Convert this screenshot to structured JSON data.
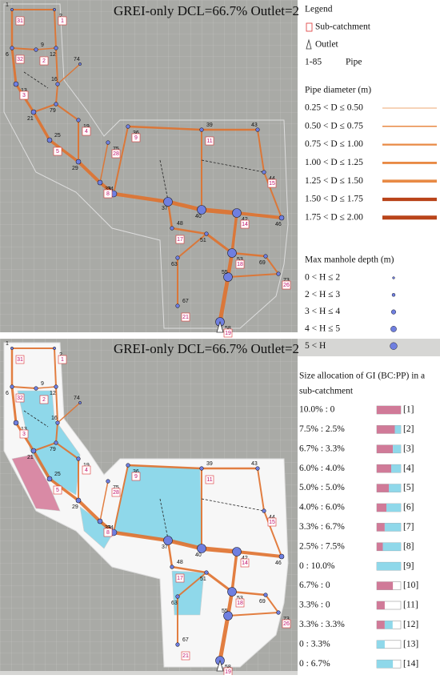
{
  "top": {
    "title": "GREI-only DCL=66.7% Outlet=2",
    "legend_title": "Legend",
    "subcatchment": "Sub-catchment",
    "outlet": "Outlet",
    "pipe_range": "1-85",
    "pipe": "Pipe",
    "diameter_title": "Pipe diameter (m)",
    "diameters": [
      "0.25 < D ≤ 0.50",
      "0.50 < D ≤ 0.75",
      "0.75 < D ≤ 1.00",
      "1.00 < D ≤ 1.25",
      "1.25 < D ≤ 1.50",
      "1.50 < D ≤ 1.75",
      "1.75 < D ≤ 2.00"
    ],
    "depth_title": "Max manhole depth (m)",
    "depths": [
      "0 < H ≤ 2",
      "2 < H ≤ 3",
      "3 < H ≤ 4",
      "4 < H ≤ 5",
      "5 < H"
    ]
  },
  "bottom": {
    "title": "GREI-only DCL=66.7% Outlet=2",
    "allocation_title_1": "Size allocation of GI (BC:PP) in a",
    "allocation_title_2": "sub-catchment",
    "allocations": [
      {
        "ratio": "10.0% : 0",
        "code": "[1]"
      },
      {
        "ratio": "7.5% : 2.5%",
        "code": "[2]"
      },
      {
        "ratio": "6.7% : 3.3%",
        "code": "[3]"
      },
      {
        "ratio": "6.0% : 4.0%",
        "code": "[4]"
      },
      {
        "ratio": "5.0% : 5.0%",
        "code": "[5]"
      },
      {
        "ratio": "4.0% : 6.0%",
        "code": "[6]"
      },
      {
        "ratio": "3.3% : 6.7%",
        "code": "[7]"
      },
      {
        "ratio": "2.5% : 7.5%",
        "code": "[8]"
      },
      {
        "ratio": "0 : 10.0%",
        "code": "[9]"
      },
      {
        "ratio": "6.7% : 0",
        "code": "[10]"
      },
      {
        "ratio": "3.3% : 0",
        "code": "[11]"
      },
      {
        "ratio": "3.3% : 3.3%",
        "code": "[12]"
      },
      {
        "ratio": "0 : 3.3%",
        "code": "[13]"
      },
      {
        "ratio": "0 : 6.7%",
        "code": "[14]"
      }
    ]
  },
  "map": {
    "pipe_labels": [
      "1",
      "2",
      "6",
      "9",
      "12",
      "13",
      "16",
      "19",
      "21",
      "25",
      "29",
      "33",
      "34",
      "36",
      "37",
      "39",
      "40",
      "42",
      "43",
      "44",
      "46",
      "48",
      "51",
      "53",
      "55",
      "58",
      "63",
      "67",
      "69",
      "73",
      "74",
      "75",
      "79"
    ],
    "subcatchment_labels": [
      "1",
      "2",
      "3",
      "4",
      "5",
      "8",
      "9",
      "11",
      "14",
      "15",
      "17",
      "18",
      "19",
      "21",
      "26",
      "28",
      "31",
      "32"
    ]
  }
}
